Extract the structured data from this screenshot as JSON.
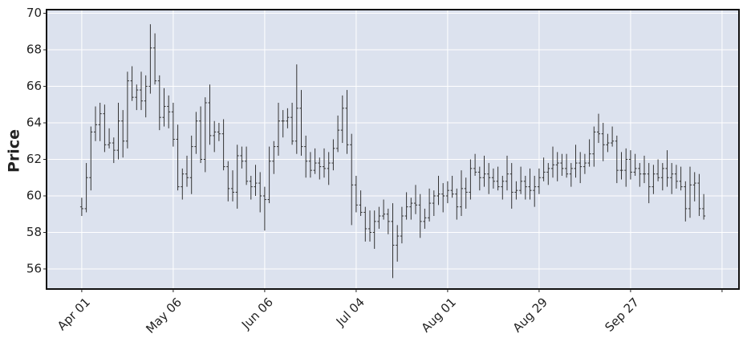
{
  "chart_data": {
    "type": "ohlc",
    "ylabel": "Price",
    "open": [
      59.4,
      59.3,
      61.0,
      63.5,
      63.9,
      64.5,
      62.8,
      62.9,
      62.5,
      64.1,
      63.0,
      66.3,
      65.4,
      65.8,
      65.2,
      66.0,
      68.1,
      66.3,
      64.3,
      64.9,
      64.6,
      63.1,
      60.5,
      61.2,
      61.0,
      62.7,
      64.1,
      62.0,
      65.1,
      63.3,
      63.5,
      63.4,
      61.6,
      60.4,
      60.2,
      62.2,
      61.9,
      60.8,
      60.5,
      60.7,
      60.0,
      59.8,
      61.9,
      62.7,
      64.1,
      64.1,
      64.3,
      63.0,
      64.8,
      62.7,
      61.9,
      61.4,
      61.8,
      61.6,
      61.5,
      61.8,
      62.6,
      63.6,
      64.8,
      62.8,
      60.6,
      59.5,
      59.1,
      58.2,
      58.0,
      58.6,
      58.9,
      59.0,
      58.6,
      57.3,
      57.8,
      58.9,
      59.4,
      59.6,
      59.5,
      58.6,
      58.8,
      59.6,
      60.0,
      60.1,
      60.0,
      60.3,
      60.1,
      59.4,
      60.4,
      60.2,
      61.5,
      61.3,
      61.0,
      61.2,
      61.0,
      60.8,
      60.5,
      60.8,
      61.2,
      60.2,
      60.3,
      60.8,
      60.5,
      60.3,
      60.5,
      61.0,
      61.3,
      61.5,
      61.7,
      61.8,
      61.5,
      61.2,
      61.5,
      61.8,
      61.6,
      61.8,
      62.3,
      63.5,
      63.4,
      62.8,
      62.9,
      63.0,
      61.4,
      61.4,
      62.0,
      61.3,
      61.5,
      61.2,
      61.2,
      60.5,
      61.2,
      61.0,
      61.5,
      61.0,
      61.2,
      60.8,
      60.5,
      59.3,
      60.6,
      60.7,
      59.3
    ],
    "high": [
      59.9,
      61.8,
      63.8,
      64.9,
      65.1,
      65.0,
      63.7,
      63.2,
      65.1,
      64.7,
      66.8,
      67.1,
      66.1,
      66.8,
      66.6,
      69.4,
      68.9,
      66.6,
      65.9,
      65.5,
      65.1,
      63.9,
      61.5,
      62.2,
      63.3,
      64.6,
      64.9,
      65.4,
      66.1,
      64.1,
      64.0,
      64.2,
      61.9,
      61.4,
      62.8,
      62.7,
      62.7,
      61.1,
      61.7,
      61.3,
      60.5,
      62.7,
      63.0,
      65.1,
      64.7,
      64.8,
      65.1,
      67.2,
      65.8,
      63.3,
      62.4,
      62.6,
      62.1,
      62.6,
      62.4,
      63.1,
      64.4,
      65.5,
      65.8,
      63.4,
      61.1,
      60.3,
      59.4,
      59.2,
      59.2,
      59.4,
      59.8,
      59.3,
      59.6,
      58.4,
      59.4,
      60.2,
      59.9,
      60.6,
      60.1,
      59.3,
      60.4,
      60.3,
      61.1,
      60.7,
      60.8,
      61.1,
      60.4,
      61.4,
      61.0,
      62.0,
      62.3,
      61.6,
      62.2,
      61.8,
      61.5,
      61.6,
      61.1,
      62.2,
      61.8,
      60.8,
      61.6,
      61.1,
      61.5,
      61.1,
      61.5,
      62.1,
      61.8,
      62.7,
      62.4,
      62.3,
      62.3,
      61.8,
      62.8,
      62.4,
      62.3,
      63.1,
      63.8,
      64.5,
      64.0,
      63.4,
      63.8,
      63.3,
      62.4,
      62.6,
      62.5,
      62.3,
      61.8,
      62.2,
      61.8,
      61.7,
      62.0,
      61.8,
      62.5,
      61.8,
      61.7,
      61.6,
      60.8,
      61.6,
      61.3,
      61.2,
      60.1
    ],
    "low": [
      58.9,
      59.1,
      60.3,
      63.0,
      63.0,
      62.4,
      62.6,
      61.8,
      62.0,
      62.1,
      62.6,
      65.2,
      64.7,
      64.7,
      64.3,
      65.6,
      66.1,
      63.6,
      63.8,
      63.7,
      62.7,
      60.3,
      59.8,
      60.5,
      60.1,
      62.3,
      61.8,
      61.3,
      62.8,
      62.4,
      63.0,
      61.4,
      59.7,
      59.7,
      59.3,
      61.5,
      60.6,
      59.8,
      60.0,
      59.1,
      58.1,
      59.6,
      61.2,
      62.2,
      63.2,
      63.7,
      62.8,
      62.3,
      62.2,
      61.0,
      61.0,
      61.2,
      60.9,
      61.0,
      60.6,
      61.4,
      62.4,
      62.9,
      62.3,
      58.4,
      59.1,
      58.9,
      57.5,
      57.5,
      57.1,
      58.2,
      58.7,
      57.9,
      55.5,
      56.4,
      57.4,
      58.7,
      58.7,
      59.0,
      57.7,
      58.2,
      58.6,
      58.9,
      59.5,
      59.1,
      59.6,
      59.9,
      58.7,
      58.9,
      59.3,
      59.8,
      61.1,
      60.3,
      60.5,
      60.1,
      60.4,
      60.3,
      59.8,
      60.3,
      59.3,
      59.8,
      60.1,
      59.8,
      59.8,
      59.4,
      60.1,
      60.8,
      60.6,
      61.0,
      60.8,
      61.1,
      61.0,
      60.5,
      61.0,
      60.7,
      61.2,
      61.6,
      61.6,
      62.9,
      61.9,
      62.4,
      62.7,
      60.7,
      60.9,
      60.5,
      60.9,
      61.1,
      60.5,
      60.7,
      59.6,
      60.1,
      60.8,
      60.3,
      60.5,
      60.1,
      60.4,
      60.3,
      58.6,
      58.8,
      59.7,
      58.9,
      58.7
    ],
    "close": [
      59.3,
      61.0,
      63.5,
      63.9,
      64.5,
      62.8,
      62.9,
      62.5,
      64.1,
      63.0,
      66.3,
      65.4,
      65.8,
      65.2,
      66.0,
      68.1,
      66.3,
      64.3,
      64.9,
      64.6,
      63.1,
      60.5,
      61.2,
      61.0,
      62.7,
      64.1,
      62.0,
      65.1,
      63.3,
      63.5,
      63.4,
      61.6,
      60.4,
      60.2,
      62.2,
      61.9,
      60.8,
      60.5,
      60.7,
      60.0,
      59.8,
      61.9,
      62.7,
      64.1,
      64.1,
      64.3,
      63.0,
      64.8,
      62.7,
      61.9,
      61.4,
      61.8,
      61.6,
      61.5,
      61.8,
      62.6,
      63.6,
      64.8,
      62.8,
      60.6,
      59.5,
      59.1,
      58.2,
      58.0,
      58.6,
      58.9,
      59.0,
      58.6,
      57.3,
      57.8,
      58.9,
      59.4,
      59.6,
      59.5,
      58.6,
      58.8,
      59.6,
      60.0,
      60.1,
      60.0,
      60.3,
      60.1,
      59.4,
      60.4,
      60.2,
      61.5,
      61.3,
      61.0,
      61.2,
      61.0,
      60.8,
      60.5,
      60.8,
      61.2,
      60.2,
      60.3,
      60.8,
      60.5,
      60.3,
      60.5,
      61.0,
      61.3,
      61.5,
      61.7,
      61.8,
      61.5,
      61.2,
      61.5,
      61.8,
      61.6,
      61.8,
      62.3,
      63.5,
      63.4,
      62.8,
      62.9,
      63.0,
      61.4,
      61.4,
      62.0,
      61.3,
      61.5,
      61.2,
      61.2,
      60.5,
      61.2,
      61.0,
      61.5,
      61.0,
      61.2,
      60.8,
      60.5,
      59.3,
      60.6,
      60.7,
      59.3,
      58.9
    ],
    "color": "#333333",
    "background": "#dce2ee",
    "grid": true,
    "xlim": [
      -7.7,
      143.7
    ],
    "xticks": [
      {
        "value": 0,
        "label": "Apr 01"
      },
      {
        "value": 20,
        "label": "May 06"
      },
      {
        "value": 40,
        "label": "Jun 06"
      },
      {
        "value": 60,
        "label": "Jul 04"
      },
      {
        "value": 80,
        "label": "Aug 01"
      },
      {
        "value": 100,
        "label": "Aug 29"
      },
      {
        "value": 120,
        "label": "Sep 27"
      },
      {
        "value": 140,
        "label": ""
      }
    ],
    "ylim": [
      54.9,
      70.2
    ],
    "yticks": [
      56,
      58,
      60,
      62,
      64,
      66,
      68,
      70
    ]
  }
}
